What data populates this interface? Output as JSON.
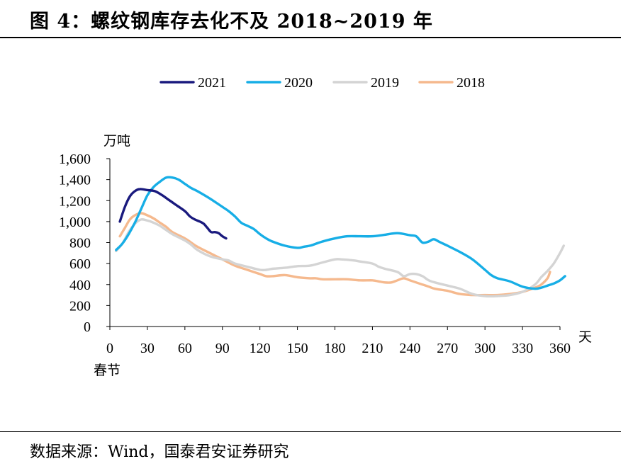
{
  "header": {
    "title": "图 4：螺纹钢库存去化不及 2018~2019 年"
  },
  "footer": {
    "source": "数据来源：Wind，国泰君安证券研究"
  },
  "chart_data": {
    "type": "line",
    "ylabel": "万吨",
    "xlabel": "天",
    "x_origin_label": "春节",
    "xlim": [
      0,
      360
    ],
    "ylim": [
      0,
      1600
    ],
    "xticks": [
      0,
      30,
      60,
      90,
      120,
      150,
      180,
      210,
      240,
      270,
      300,
      330,
      360
    ],
    "yticks": [
      0,
      200,
      400,
      600,
      800,
      1000,
      1200,
      1400,
      1600
    ],
    "ytick_labels": [
      "0",
      "200",
      "400",
      "600",
      "800",
      "1,000",
      "1,200",
      "1,400",
      "1,600"
    ],
    "grid": false,
    "legend_position": "top",
    "series": [
      {
        "name": "2021",
        "color": "#1a1a7e",
        "points": [
          [
            8,
            1000
          ],
          [
            12,
            1140
          ],
          [
            16,
            1240
          ],
          [
            20,
            1290
          ],
          [
            24,
            1310
          ],
          [
            30,
            1300
          ],
          [
            36,
            1290
          ],
          [
            42,
            1250
          ],
          [
            48,
            1200
          ],
          [
            54,
            1150
          ],
          [
            60,
            1100
          ],
          [
            64,
            1050
          ],
          [
            68,
            1020
          ],
          [
            72,
            1000
          ],
          [
            75,
            980
          ],
          [
            78,
            940
          ],
          [
            81,
            900
          ],
          [
            84,
            900
          ],
          [
            87,
            890
          ],
          [
            90,
            860
          ],
          [
            93,
            840
          ]
        ]
      },
      {
        "name": "2020",
        "color": "#17aee6",
        "points": [
          [
            5,
            730
          ],
          [
            10,
            790
          ],
          [
            15,
            880
          ],
          [
            20,
            990
          ],
          [
            25,
            1120
          ],
          [
            30,
            1250
          ],
          [
            35,
            1330
          ],
          [
            40,
            1380
          ],
          [
            45,
            1420
          ],
          [
            50,
            1420
          ],
          [
            55,
            1400
          ],
          [
            60,
            1360
          ],
          [
            65,
            1320
          ],
          [
            70,
            1290
          ],
          [
            80,
            1220
          ],
          [
            90,
            1140
          ],
          [
            95,
            1100
          ],
          [
            100,
            1050
          ],
          [
            105,
            990
          ],
          [
            110,
            960
          ],
          [
            115,
            930
          ],
          [
            120,
            880
          ],
          [
            125,
            840
          ],
          [
            130,
            810
          ],
          [
            140,
            770
          ],
          [
            150,
            750
          ],
          [
            155,
            760
          ],
          [
            160,
            770
          ],
          [
            165,
            790
          ],
          [
            170,
            810
          ],
          [
            180,
            840
          ],
          [
            190,
            860
          ],
          [
            200,
            860
          ],
          [
            210,
            860
          ],
          [
            220,
            875
          ],
          [
            230,
            890
          ],
          [
            240,
            870
          ],
          [
            245,
            860
          ],
          [
            250,
            800
          ],
          [
            255,
            810
          ],
          [
            258,
            830
          ],
          [
            260,
            830
          ],
          [
            263,
            810
          ],
          [
            270,
            770
          ],
          [
            280,
            710
          ],
          [
            290,
            640
          ],
          [
            300,
            540
          ],
          [
            305,
            490
          ],
          [
            310,
            460
          ],
          [
            320,
            430
          ],
          [
            330,
            380
          ],
          [
            340,
            360
          ],
          [
            345,
            370
          ],
          [
            350,
            390
          ],
          [
            355,
            410
          ],
          [
            360,
            440
          ],
          [
            364,
            480
          ]
        ]
      },
      {
        "name": "2019",
        "color": "#d4d4d4",
        "points": [
          [
            5,
            720
          ],
          [
            10,
            790
          ],
          [
            15,
            900
          ],
          [
            20,
            980
          ],
          [
            25,
            1020
          ],
          [
            30,
            1010
          ],
          [
            35,
            990
          ],
          [
            40,
            960
          ],
          [
            45,
            920
          ],
          [
            50,
            880
          ],
          [
            60,
            820
          ],
          [
            65,
            780
          ],
          [
            70,
            730
          ],
          [
            80,
            670
          ],
          [
            90,
            640
          ],
          [
            95,
            630
          ],
          [
            100,
            600
          ],
          [
            110,
            570
          ],
          [
            120,
            540
          ],
          [
            125,
            540
          ],
          [
            130,
            550
          ],
          [
            140,
            560
          ],
          [
            150,
            575
          ],
          [
            160,
            580
          ],
          [
            170,
            610
          ],
          [
            180,
            640
          ],
          [
            185,
            640
          ],
          [
            195,
            630
          ],
          [
            200,
            620
          ],
          [
            210,
            600
          ],
          [
            215,
            570
          ],
          [
            220,
            550
          ],
          [
            230,
            520
          ],
          [
            235,
            480
          ],
          [
            240,
            500
          ],
          [
            245,
            500
          ],
          [
            250,
            480
          ],
          [
            255,
            440
          ],
          [
            260,
            420
          ],
          [
            270,
            390
          ],
          [
            280,
            360
          ],
          [
            290,
            310
          ],
          [
            300,
            290
          ],
          [
            310,
            290
          ],
          [
            320,
            300
          ],
          [
            330,
            330
          ],
          [
            340,
            400
          ],
          [
            345,
            470
          ],
          [
            350,
            530
          ],
          [
            355,
            600
          ],
          [
            360,
            700
          ],
          [
            363,
            770
          ]
        ]
      },
      {
        "name": "2018",
        "color": "#f5b98e",
        "points": [
          [
            8,
            860
          ],
          [
            12,
            940
          ],
          [
            16,
            1020
          ],
          [
            20,
            1060
          ],
          [
            25,
            1080
          ],
          [
            30,
            1060
          ],
          [
            35,
            1030
          ],
          [
            40,
            990
          ],
          [
            45,
            950
          ],
          [
            50,
            900
          ],
          [
            60,
            840
          ],
          [
            65,
            800
          ],
          [
            70,
            760
          ],
          [
            80,
            700
          ],
          [
            90,
            640
          ],
          [
            100,
            580
          ],
          [
            110,
            540
          ],
          [
            120,
            500
          ],
          [
            125,
            480
          ],
          [
            130,
            480
          ],
          [
            140,
            490
          ],
          [
            150,
            470
          ],
          [
            160,
            460
          ],
          [
            165,
            460
          ],
          [
            170,
            450
          ],
          [
            180,
            450
          ],
          [
            190,
            450
          ],
          [
            200,
            440
          ],
          [
            210,
            440
          ],
          [
            215,
            430
          ],
          [
            220,
            420
          ],
          [
            225,
            420
          ],
          [
            230,
            440
          ],
          [
            235,
            460
          ],
          [
            240,
            440
          ],
          [
            245,
            420
          ],
          [
            250,
            400
          ],
          [
            255,
            380
          ],
          [
            260,
            360
          ],
          [
            270,
            340
          ],
          [
            280,
            310
          ],
          [
            290,
            300
          ],
          [
            300,
            300
          ],
          [
            310,
            300
          ],
          [
            320,
            310
          ],
          [
            330,
            330
          ],
          [
            340,
            370
          ],
          [
            345,
            400
          ],
          [
            350,
            460
          ],
          [
            352,
            520
          ]
        ]
      }
    ]
  }
}
